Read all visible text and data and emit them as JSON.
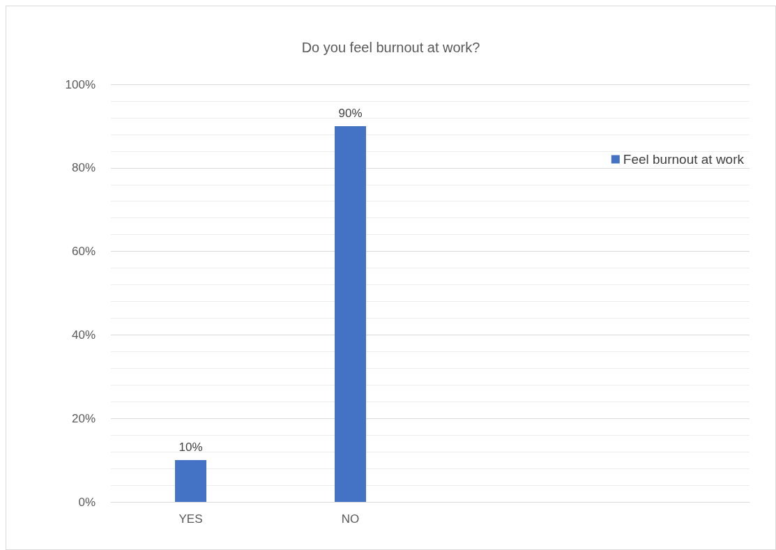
{
  "chart_data": {
    "type": "bar",
    "title": "Do you feel burnout at work?",
    "categories": [
      "YES",
      "NO",
      null,
      null
    ],
    "series": [
      {
        "name": "Feel burnout at work",
        "color": "#4472c4",
        "values": [
          10,
          90,
          null,
          null
        ],
        "value_labels": [
          "10%",
          "90%",
          null,
          null
        ]
      }
    ],
    "ylim": [
      0,
      100
    ],
    "yticks": [
      {
        "value": 0,
        "label": "0%"
      },
      {
        "value": 20,
        "label": "20%"
      },
      {
        "value": 40,
        "label": "40%"
      },
      {
        "value": 60,
        "label": "60%"
      },
      {
        "value": 80,
        "label": "80%"
      },
      {
        "value": 100,
        "label": "100%"
      }
    ],
    "grid": "y",
    "legend": "right"
  }
}
